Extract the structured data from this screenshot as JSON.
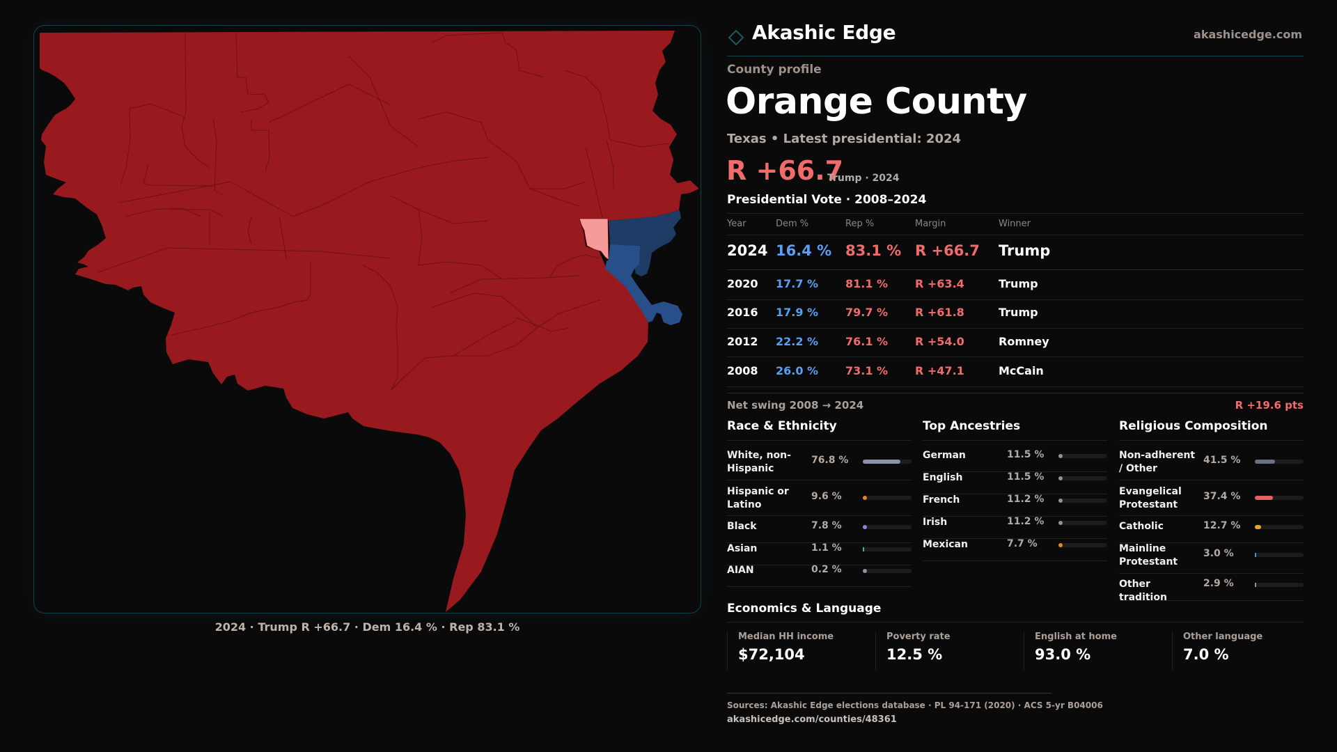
{
  "brand": {
    "name": "Akashic Edge",
    "site": "akashicedge.com",
    "logo_icon": "diamond-outline-icon"
  },
  "profile": {
    "kicker": "County profile",
    "county": "Orange County",
    "subtitle": "Texas • Latest presidential: 2024",
    "headline_margin": "R +66.7",
    "headline_sub": "Trump · 2024"
  },
  "colors": {
    "rep": "#f06b6b",
    "dem": "#5c9ef2",
    "map_rep_strong": "#981a1e",
    "map_rep_lean": "#f79a9a",
    "map_dem_strong": "#1f3c66",
    "map_dem_mid": "#284f8a",
    "accent_line": "#14454d"
  },
  "vote_table": {
    "title": "Presidential Vote · 2008–2024",
    "columns": [
      "Year",
      "Dem %",
      "Rep %",
      "Margin",
      "Winner"
    ],
    "rows": [
      {
        "year": "2024",
        "dem": "16.4 %",
        "rep": "83.1 %",
        "margin": "R +66.7",
        "winner": "Trump"
      },
      {
        "year": "2020",
        "dem": "17.7 %",
        "rep": "81.1 %",
        "margin": "R +63.4",
        "winner": "Trump"
      },
      {
        "year": "2016",
        "dem": "17.9 %",
        "rep": "79.7 %",
        "margin": "R +61.8",
        "winner": "Trump"
      },
      {
        "year": "2012",
        "dem": "22.2 %",
        "rep": "76.1 %",
        "margin": "R +54.0",
        "winner": "Romney"
      },
      {
        "year": "2008",
        "dem": "26.0 %",
        "rep": "73.1 %",
        "margin": "R +47.1",
        "winner": "McCain"
      }
    ],
    "swing_label": "Net swing 2008 → 2024",
    "swing_value": "R +19.6 pts"
  },
  "race": {
    "title": "Race & Ethnicity",
    "items": [
      {
        "label": "White, non-Hispanic",
        "value": "76.8 %",
        "pct": 76.8,
        "color": "#8b93a6"
      },
      {
        "label": "Hispanic or Latino",
        "value": "9.6 %",
        "pct": 9.6,
        "color": "#e08a1a"
      },
      {
        "label": "Black",
        "value": "7.8 %",
        "pct": 7.8,
        "color": "#9a7fe0"
      },
      {
        "label": "Asian",
        "value": "1.1 %",
        "pct": 1.1,
        "color": "#2fbf8f"
      },
      {
        "label": "AIAN",
        "value": "0.2 %",
        "pct": 0.2,
        "color": "#8b93a6"
      }
    ]
  },
  "ancestry": {
    "title": "Top Ancestries",
    "items": [
      {
        "label": "German",
        "value": "11.5 %",
        "pct": 11.5,
        "color": "#8b93a6"
      },
      {
        "label": "English",
        "value": "11.5 %",
        "pct": 11.5,
        "color": "#8b93a6"
      },
      {
        "label": "French",
        "value": "11.2 %",
        "pct": 11.2,
        "color": "#8b93a6"
      },
      {
        "label": "Irish",
        "value": "11.2 %",
        "pct": 11.2,
        "color": "#8b93a6"
      },
      {
        "label": "Mexican",
        "value": "7.7 %",
        "pct": 7.7,
        "color": "#e08a1a"
      }
    ]
  },
  "religion": {
    "title": "Religious Composition",
    "items": [
      {
        "label": "Non-adherent / Other",
        "value": "41.5 %",
        "pct": 41.5,
        "color": "#6a7080"
      },
      {
        "label": "Evangelical Protestant",
        "value": "37.4 %",
        "pct": 37.4,
        "color": "#e06363"
      },
      {
        "label": "Catholic",
        "value": "12.7 %",
        "pct": 12.7,
        "color": "#e0a82a"
      },
      {
        "label": "Mainline Protestant",
        "value": "3.0 %",
        "pct": 3.0,
        "color": "#4a8fe0"
      },
      {
        "label": "Other tradition",
        "value": "2.9 %",
        "pct": 2.9,
        "color": "#8b93a6"
      }
    ]
  },
  "economics": {
    "title": "Economics & Language",
    "cards": [
      {
        "label": "Median HH income",
        "value": "$72,104"
      },
      {
        "label": "Poverty rate",
        "value": "12.5 %"
      },
      {
        "label": "English at home",
        "value": "93.0 %"
      },
      {
        "label": "Other language",
        "value": "7.0 %"
      }
    ]
  },
  "map": {
    "caption": "2024 · Trump R +66.7 · Dem 16.4 % · Rep 83.1 %",
    "highlighted_county": "Orange County"
  },
  "footer": {
    "sources": "Sources: Akashic Edge elections database · PL 94-171 (2020) · ACS 5-yr B04006",
    "url": "akashicedge.com/counties/48361"
  }
}
